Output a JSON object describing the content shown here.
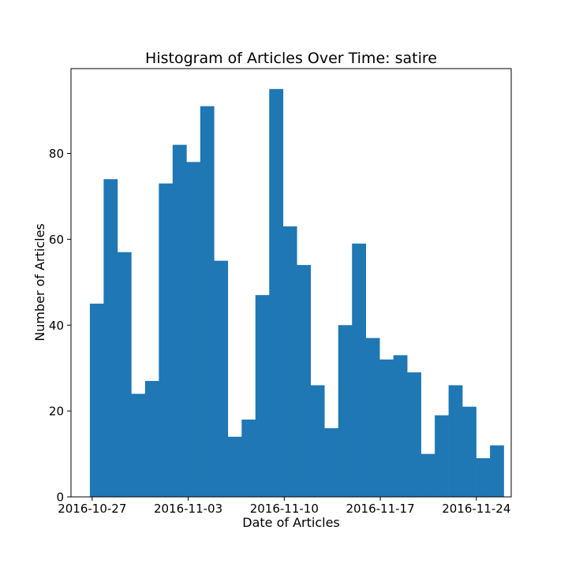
{
  "chart_data": {
    "type": "bar",
    "title": "Histogram of Articles Over Time: satire",
    "xlabel": "Date of Articles",
    "ylabel": "Number of Articles",
    "color": "#1f77b4",
    "ylim": [
      0,
      99.75
    ],
    "yticks": [
      0,
      20,
      40,
      60,
      80
    ],
    "xlim": [
      "2016-10-25T11:00",
      "2016-11-26T13:00"
    ],
    "xticks": [
      "2016-10-27",
      "2016-11-03",
      "2016-11-10",
      "2016-11-17",
      "2016-11-24"
    ],
    "bin_start": "2016-10-26T20:00",
    "bin_end": "2016-11-26T00:00",
    "values": [
      45,
      74,
      57,
      24,
      27,
      73,
      82,
      78,
      91,
      55,
      14,
      18,
      47,
      95,
      63,
      54,
      26,
      16,
      40,
      59,
      37,
      32,
      33,
      29,
      10,
      19,
      26,
      21,
      9,
      12
    ]
  }
}
